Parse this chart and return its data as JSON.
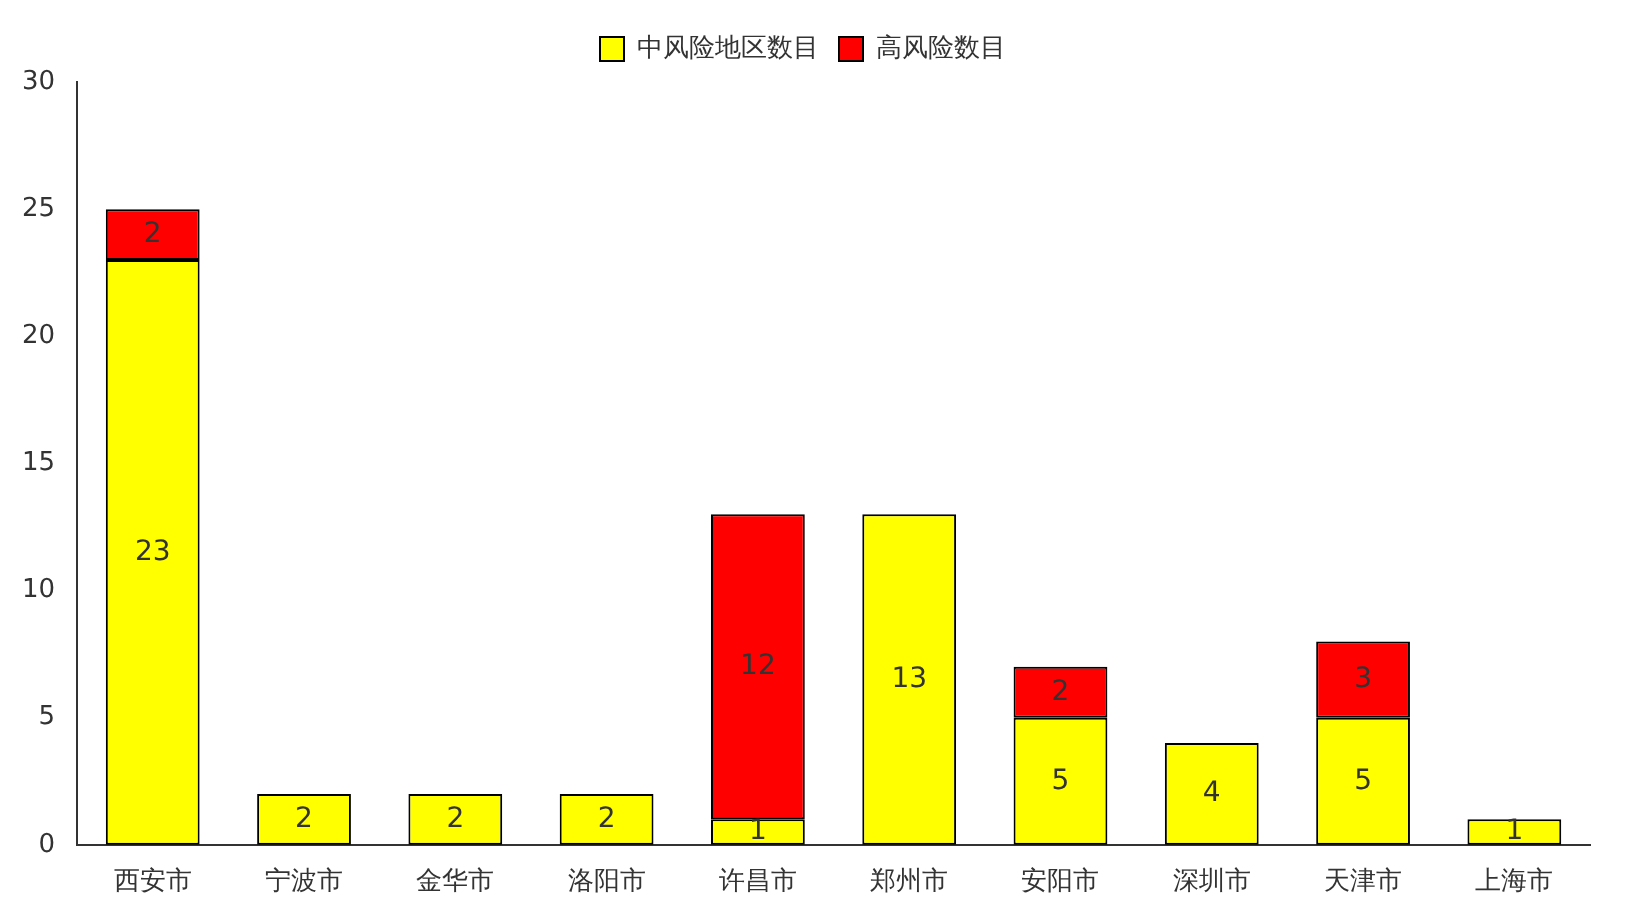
{
  "chart_data": {
    "type": "bar",
    "stacked": true,
    "categories": [
      "西安市",
      "宁波市",
      "金华市",
      "洛阳市",
      "许昌市",
      "郑州市",
      "安阳市",
      "深圳市",
      "天津市",
      "上海市"
    ],
    "series": [
      {
        "name": "中风险地区数目",
        "color": "#ffff00",
        "values": [
          23,
          2,
          2,
          2,
          1,
          13,
          5,
          4,
          5,
          1
        ]
      },
      {
        "name": "高风险数目",
        "color": "#ff0000",
        "values": [
          2,
          null,
          null,
          null,
          12,
          null,
          2,
          null,
          3,
          null
        ]
      }
    ],
    "ylim": [
      0,
      30
    ],
    "yticks": [
      0,
      5,
      10,
      15,
      20,
      25,
      30
    ],
    "grid": false,
    "legend": "top",
    "data_labels": true
  }
}
